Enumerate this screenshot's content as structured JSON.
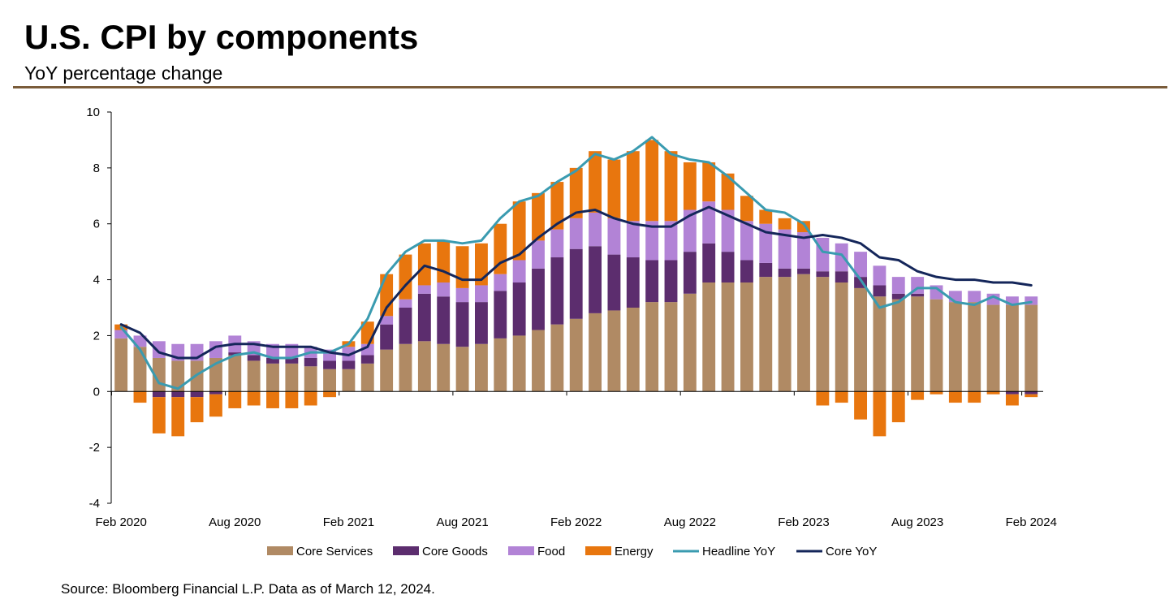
{
  "title": "U.S. CPI by components",
  "subtitle": "YoY percentage change",
  "source": "Source: Bloomberg Financial L.P. Data as of March 12, 2024.",
  "colors": {
    "core_services": "#b08a64",
    "core_goods": "#5c2d6e",
    "food": "#b283d6",
    "energy": "#e8760e",
    "headline": "#3a9bb0",
    "core": "#14265a",
    "axis": "#000000",
    "rule": "#7a5c3a"
  },
  "chart_data": {
    "type": "bar",
    "stacked": true,
    "ylim": [
      -4,
      10
    ],
    "yticks": [
      -4,
      -2,
      0,
      2,
      4,
      6,
      8,
      10
    ],
    "xtick_labels": [
      "Feb 2020",
      "Aug 2020",
      "Feb 2021",
      "Aug 2021",
      "Feb 2022",
      "Aug 2022",
      "Feb 2023",
      "Aug 2023",
      "Feb 2024"
    ],
    "xtick_every": 6,
    "categories": [
      "Feb 2020",
      "Mar 2020",
      "Apr 2020",
      "May 2020",
      "Jun 2020",
      "Jul 2020",
      "Aug 2020",
      "Sep 2020",
      "Oct 2020",
      "Nov 2020",
      "Dec 2020",
      "Jan 2021",
      "Feb 2021",
      "Mar 2021",
      "Apr 2021",
      "May 2021",
      "Jun 2021",
      "Jul 2021",
      "Aug 2021",
      "Sep 2021",
      "Oct 2021",
      "Nov 2021",
      "Dec 2021",
      "Jan 2022",
      "Feb 2022",
      "Mar 2022",
      "Apr 2022",
      "May 2022",
      "Jun 2022",
      "Jul 2022",
      "Aug 2022",
      "Sep 2022",
      "Oct 2022",
      "Nov 2022",
      "Dec 2022",
      "Jan 2023",
      "Feb 2023",
      "Mar 2023",
      "Apr 2023",
      "May 2023",
      "Jun 2023",
      "Jul 2023",
      "Aug 2023",
      "Sep 2023",
      "Oct 2023",
      "Nov 2023",
      "Dec 2023",
      "Jan 2024",
      "Feb 2024"
    ],
    "legend_position": "bottom",
    "series": [
      {
        "name": "Core Services",
        "kind": "bar",
        "color_key": "core_services",
        "values": [
          1.9,
          1.6,
          1.2,
          1.1,
          1.1,
          1.2,
          1.3,
          1.1,
          1.0,
          1.0,
          0.9,
          0.8,
          0.8,
          1.0,
          1.5,
          1.7,
          1.8,
          1.7,
          1.6,
          1.7,
          1.9,
          2.0,
          2.2,
          2.4,
          2.6,
          2.8,
          2.9,
          3.0,
          3.2,
          3.2,
          3.5,
          3.9,
          3.9,
          3.9,
          4.1,
          4.1,
          4.2,
          4.1,
          3.9,
          3.7,
          3.4,
          3.3,
          3.4,
          3.3,
          3.2,
          3.2,
          3.1,
          3.1,
          3.1
        ]
      },
      {
        "name": "Core Goods",
        "kind": "bar",
        "color_key": "core_goods",
        "values": [
          0.0,
          0.0,
          -0.2,
          -0.2,
          -0.2,
          -0.1,
          0.1,
          0.2,
          0.2,
          0.2,
          0.3,
          0.3,
          0.3,
          0.3,
          0.9,
          1.3,
          1.7,
          1.7,
          1.6,
          1.5,
          1.7,
          1.9,
          2.2,
          2.4,
          2.5,
          2.4,
          2.0,
          1.8,
          1.5,
          1.5,
          1.5,
          1.4,
          1.1,
          0.8,
          0.5,
          0.3,
          0.2,
          0.2,
          0.4,
          0.4,
          0.4,
          0.2,
          0.1,
          0.0,
          0.0,
          0.0,
          0.0,
          -0.1,
          -0.1
        ]
      },
      {
        "name": "Food",
        "kind": "bar",
        "color_key": "food",
        "values": [
          0.3,
          0.4,
          0.6,
          0.6,
          0.6,
          0.6,
          0.6,
          0.5,
          0.5,
          0.5,
          0.4,
          0.4,
          0.5,
          0.4,
          0.3,
          0.3,
          0.3,
          0.5,
          0.5,
          0.6,
          0.6,
          0.8,
          1.0,
          1.0,
          1.1,
          1.2,
          1.3,
          1.3,
          1.4,
          1.4,
          1.5,
          1.5,
          1.5,
          1.4,
          1.4,
          1.4,
          1.3,
          1.2,
          1.0,
          0.9,
          0.7,
          0.6,
          0.6,
          0.5,
          0.4,
          0.4,
          0.4,
          0.3,
          0.3
        ]
      },
      {
        "name": "Energy",
        "kind": "bar",
        "color_key": "energy",
        "values": [
          0.2,
          -0.4,
          -1.3,
          -1.4,
          -0.9,
          -0.8,
          -0.6,
          -0.5,
          -0.6,
          -0.6,
          -0.5,
          -0.2,
          0.2,
          0.8,
          1.5,
          1.6,
          1.5,
          1.5,
          1.5,
          1.5,
          1.8,
          2.1,
          1.7,
          1.7,
          1.8,
          2.2,
          2.1,
          2.5,
          2.9,
          2.5,
          1.7,
          1.4,
          1.3,
          0.9,
          0.5,
          0.4,
          0.4,
          -0.5,
          -0.4,
          -1.0,
          -1.6,
          -1.1,
          -0.3,
          -0.1,
          -0.4,
          -0.4,
          -0.1,
          -0.4,
          -0.1
        ]
      },
      {
        "name": "Headline YoY",
        "kind": "line",
        "color_key": "headline",
        "values": [
          2.3,
          1.5,
          0.3,
          0.1,
          0.6,
          1.0,
          1.3,
          1.4,
          1.2,
          1.2,
          1.4,
          1.4,
          1.7,
          2.6,
          4.2,
          5.0,
          5.4,
          5.4,
          5.3,
          5.4,
          6.2,
          6.8,
          7.0,
          7.5,
          7.9,
          8.5,
          8.3,
          8.6,
          9.1,
          8.5,
          8.3,
          8.2,
          7.7,
          7.1,
          6.5,
          6.4,
          6.0,
          5.0,
          4.9,
          4.0,
          3.0,
          3.2,
          3.7,
          3.7,
          3.2,
          3.1,
          3.4,
          3.1,
          3.2
        ]
      },
      {
        "name": "Core YoY",
        "kind": "line",
        "color_key": "core",
        "values": [
          2.4,
          2.1,
          1.4,
          1.2,
          1.2,
          1.6,
          1.7,
          1.7,
          1.6,
          1.6,
          1.6,
          1.4,
          1.3,
          1.6,
          3.0,
          3.8,
          4.5,
          4.3,
          4.0,
          4.0,
          4.6,
          4.9,
          5.5,
          6.0,
          6.4,
          6.5,
          6.2,
          6.0,
          5.9,
          5.9,
          6.3,
          6.6,
          6.3,
          6.0,
          5.7,
          5.6,
          5.5,
          5.6,
          5.5,
          5.3,
          4.8,
          4.7,
          4.3,
          4.1,
          4.0,
          4.0,
          3.9,
          3.9,
          3.8
        ]
      }
    ]
  }
}
